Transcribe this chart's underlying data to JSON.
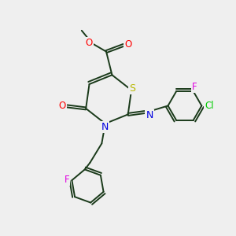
{
  "bg_color": "#efefef",
  "atom_colors": {
    "S": "#b8b800",
    "N": "#0000e0",
    "O": "#ff0000",
    "F": "#e000e0",
    "Cl": "#00cc00",
    "C": "#1a3a1a"
  },
  "bond_color": "#1a3a1a",
  "lw": 1.4
}
